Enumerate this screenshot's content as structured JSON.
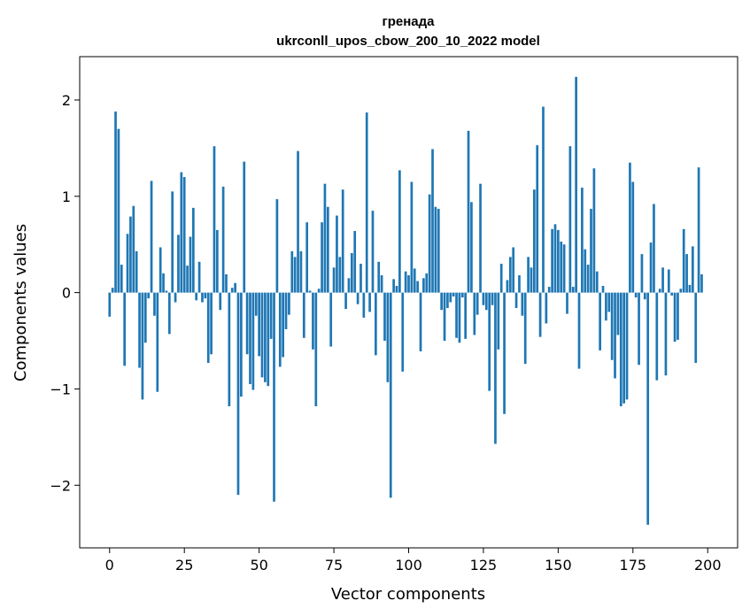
{
  "chart_data": {
    "type": "bar",
    "title": "гренада",
    "subtitle": "ukrconll_upos_cbow_200_10_2022 model",
    "xlabel": "Vector components",
    "ylabel": "Components values",
    "xlim": [
      -10,
      210
    ],
    "ylim": [
      -2.65,
      2.45
    ],
    "xticks": [
      0,
      25,
      50,
      75,
      100,
      125,
      150,
      175,
      200
    ],
    "yticks": [
      -2,
      -1,
      0,
      1,
      2
    ],
    "grid": false,
    "x_start": 0,
    "values": [
      -0.25,
      0.05,
      1.88,
      1.7,
      0.29,
      -0.76,
      0.61,
      0.79,
      0.9,
      0.43,
      -0.78,
      -1.11,
      -0.52,
      -0.06,
      1.16,
      -0.24,
      -1.03,
      0.47,
      0.2,
      0.02,
      -0.43,
      1.05,
      -0.1,
      0.6,
      1.25,
      1.2,
      0.28,
      0.58,
      0.88,
      -0.08,
      0.32,
      -0.1,
      -0.06,
      -0.73,
      -0.64,
      1.52,
      0.65,
      -0.18,
      1.1,
      0.19,
      -1.18,
      0.05,
      0.1,
      -2.1,
      -1.08,
      1.36,
      -0.64,
      -0.95,
      -1.01,
      -0.24,
      -0.66,
      -0.88,
      -0.93,
      -0.97,
      -0.48,
      -2.17,
      0.97,
      -0.77,
      -0.67,
      -0.38,
      -0.23,
      0.43,
      0.37,
      1.47,
      0.43,
      -0.47,
      0.73,
      0.02,
      -0.59,
      -1.18,
      0.04,
      0.73,
      1.13,
      0.89,
      -0.56,
      0.26,
      0.8,
      0.37,
      1.07,
      -0.17,
      0.15,
      0.41,
      0.64,
      -0.12,
      0.3,
      -0.26,
      1.87,
      -0.2,
      0.85,
      -0.65,
      0.32,
      0.18,
      -0.5,
      -0.93,
      -2.13,
      0.14,
      0.07,
      1.27,
      -0.82,
      0.22,
      0.18,
      1.15,
      0.25,
      0.12,
      -0.61,
      0.15,
      0.2,
      1.02,
      1.49,
      0.89,
      0.87,
      -0.18,
      -0.5,
      -0.16,
      -0.1,
      -0.04,
      -0.47,
      -0.52,
      -0.05,
      -0.48,
      1.68,
      0.94,
      -0.44,
      -0.23,
      1.13,
      -0.13,
      -0.18,
      -1.02,
      -0.13,
      -1.57,
      -0.59,
      0.3,
      -1.26,
      0.13,
      0.37,
      0.47,
      -0.16,
      0.18,
      -0.24,
      -0.74,
      0.37,
      0.26,
      1.07,
      1.53,
      -0.46,
      1.93,
      -0.32,
      0.06,
      0.66,
      0.71,
      0.65,
      0.53,
      0.5,
      -0.22,
      1.52,
      0.06,
      2.24,
      -0.79,
      1.09,
      0.45,
      0.29,
      0.87,
      1.29,
      0.22,
      -0.6,
      0.07,
      -0.29,
      -0.2,
      -0.7,
      -0.89,
      -0.44,
      -1.18,
      -1.15,
      -1.11,
      1.35,
      1.15,
      -0.05,
      -0.75,
      0.4,
      -0.07,
      -2.41,
      0.52,
      0.92,
      -0.91,
      0.04,
      0.26,
      -0.86,
      0.24,
      -0.03,
      -0.51,
      -0.49,
      0.04,
      0.66,
      0.4,
      0.08,
      0.48,
      -0.73,
      1.3,
      0.19
    ]
  }
}
